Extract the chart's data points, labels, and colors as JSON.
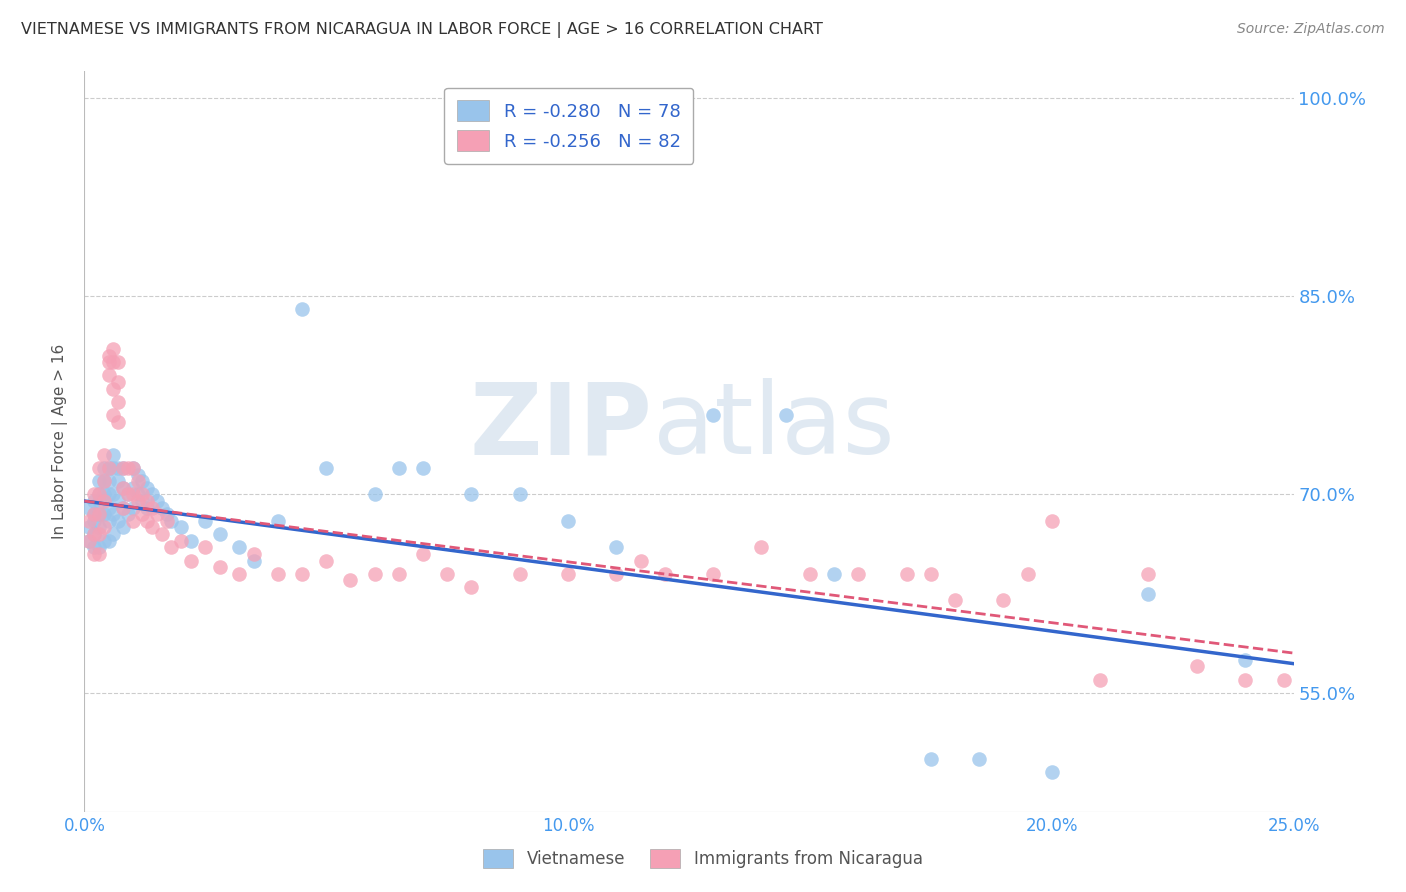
{
  "title": "VIETNAMESE VS IMMIGRANTS FROM NICARAGUA IN LABOR FORCE | AGE > 16 CORRELATION CHART",
  "source": "Source: ZipAtlas.com",
  "ylabel": "In Labor Force | Age > 16",
  "xlim": [
    0.0,
    0.25
  ],
  "ylim": [
    0.46,
    1.02
  ],
  "yticks": [
    0.55,
    0.7,
    0.85,
    1.0
  ],
  "ytick_labels": [
    "55.0%",
    "70.0%",
    "85.0%",
    "100.0%"
  ],
  "xticks": [
    0.0,
    0.05,
    0.1,
    0.15,
    0.2,
    0.25
  ],
  "xtick_labels": [
    "0.0%",
    "",
    "10.0%",
    "",
    "20.0%",
    "25.0%"
  ],
  "series1_name": "Vietnamese",
  "series1_R": -0.28,
  "series1_N": 78,
  "series1_color": "#99c4eb",
  "series1_line_color": "#3366cc",
  "series2_name": "Immigrants from Nicaragua",
  "series2_R": -0.256,
  "series2_N": 82,
  "series2_color": "#f5a0b5",
  "series2_line_color": "#e05878",
  "watermark_zip": "ZIP",
  "watermark_atlas": "atlas",
  "background_color": "#ffffff",
  "grid_color": "#cccccc",
  "title_color": "#333333",
  "axis_label_color": "#555555",
  "tick_label_color": "#4499ee",
  "legend_text_color": "#3366cc",
  "series1_x": [
    0.001,
    0.001,
    0.001,
    0.002,
    0.002,
    0.002,
    0.002,
    0.002,
    0.003,
    0.003,
    0.003,
    0.003,
    0.003,
    0.003,
    0.004,
    0.004,
    0.004,
    0.004,
    0.004,
    0.005,
    0.005,
    0.005,
    0.005,
    0.005,
    0.005,
    0.006,
    0.006,
    0.006,
    0.006,
    0.006,
    0.007,
    0.007,
    0.007,
    0.007,
    0.008,
    0.008,
    0.008,
    0.008,
    0.009,
    0.009,
    0.01,
    0.01,
    0.01,
    0.011,
    0.011,
    0.012,
    0.012,
    0.013,
    0.013,
    0.014,
    0.015,
    0.016,
    0.017,
    0.018,
    0.02,
    0.022,
    0.025,
    0.028,
    0.032,
    0.035,
    0.04,
    0.045,
    0.05,
    0.06,
    0.065,
    0.07,
    0.08,
    0.09,
    0.1,
    0.11,
    0.13,
    0.145,
    0.155,
    0.175,
    0.185,
    0.2,
    0.22,
    0.24
  ],
  "series1_y": [
    0.69,
    0.675,
    0.665,
    0.695,
    0.68,
    0.67,
    0.66,
    0.685,
    0.7,
    0.685,
    0.71,
    0.695,
    0.675,
    0.66,
    0.72,
    0.71,
    0.7,
    0.685,
    0.665,
    0.72,
    0.71,
    0.7,
    0.69,
    0.68,
    0.665,
    0.73,
    0.72,
    0.7,
    0.685,
    0.67,
    0.72,
    0.71,
    0.695,
    0.68,
    0.72,
    0.705,
    0.69,
    0.675,
    0.7,
    0.685,
    0.72,
    0.705,
    0.69,
    0.715,
    0.7,
    0.71,
    0.695,
    0.705,
    0.69,
    0.7,
    0.695,
    0.69,
    0.685,
    0.68,
    0.675,
    0.665,
    0.68,
    0.67,
    0.66,
    0.65,
    0.68,
    0.84,
    0.72,
    0.7,
    0.72,
    0.72,
    0.7,
    0.7,
    0.68,
    0.66,
    0.76,
    0.76,
    0.64,
    0.5,
    0.5,
    0.49,
    0.625,
    0.575
  ],
  "series2_x": [
    0.001,
    0.001,
    0.002,
    0.002,
    0.002,
    0.002,
    0.003,
    0.003,
    0.003,
    0.003,
    0.003,
    0.004,
    0.004,
    0.004,
    0.004,
    0.005,
    0.005,
    0.005,
    0.005,
    0.006,
    0.006,
    0.006,
    0.006,
    0.007,
    0.007,
    0.007,
    0.007,
    0.008,
    0.008,
    0.008,
    0.009,
    0.009,
    0.01,
    0.01,
    0.01,
    0.011,
    0.011,
    0.012,
    0.012,
    0.013,
    0.013,
    0.014,
    0.014,
    0.015,
    0.016,
    0.017,
    0.018,
    0.02,
    0.022,
    0.025,
    0.028,
    0.032,
    0.035,
    0.04,
    0.045,
    0.05,
    0.055,
    0.06,
    0.065,
    0.07,
    0.075,
    0.08,
    0.09,
    0.1,
    0.11,
    0.115,
    0.12,
    0.13,
    0.14,
    0.15,
    0.16,
    0.17,
    0.175,
    0.18,
    0.19,
    0.195,
    0.2,
    0.21,
    0.22,
    0.23,
    0.24,
    0.248
  ],
  "series2_y": [
    0.68,
    0.665,
    0.7,
    0.685,
    0.67,
    0.655,
    0.72,
    0.7,
    0.685,
    0.67,
    0.655,
    0.73,
    0.71,
    0.695,
    0.675,
    0.72,
    0.805,
    0.8,
    0.79,
    0.81,
    0.8,
    0.78,
    0.76,
    0.8,
    0.785,
    0.77,
    0.755,
    0.72,
    0.705,
    0.69,
    0.72,
    0.7,
    0.72,
    0.7,
    0.68,
    0.71,
    0.695,
    0.7,
    0.685,
    0.695,
    0.68,
    0.69,
    0.675,
    0.685,
    0.67,
    0.68,
    0.66,
    0.665,
    0.65,
    0.66,
    0.645,
    0.64,
    0.655,
    0.64,
    0.64,
    0.65,
    0.635,
    0.64,
    0.64,
    0.655,
    0.64,
    0.63,
    0.64,
    0.64,
    0.64,
    0.65,
    0.64,
    0.64,
    0.66,
    0.64,
    0.64,
    0.64,
    0.64,
    0.62,
    0.62,
    0.64,
    0.68,
    0.56,
    0.64,
    0.57,
    0.56,
    0.56
  ]
}
